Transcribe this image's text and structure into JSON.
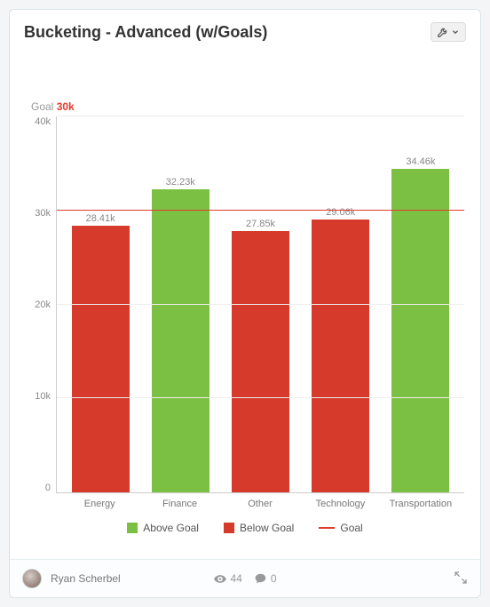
{
  "card": {
    "title": "Bucketing - Advanced (w/Goals)"
  },
  "chart": {
    "type": "bar",
    "goal_label": "Goal",
    "goal_value_label": "30k",
    "goal_value": 30,
    "goal_color": "#e23b2e",
    "ylim": [
      0,
      40
    ],
    "ytick_step": 10,
    "yticks": [
      "40k",
      "30k",
      "20k",
      "10k",
      "0"
    ],
    "background_color": "#ffffff",
    "grid_color": "#eeeeee",
    "axis_color": "#cccccc",
    "bar_width_pct": 72,
    "label_fontsize": 11,
    "label_color": "#888888",
    "categories": [
      "Energy",
      "Finance",
      "Other",
      "Technology",
      "Transportation"
    ],
    "values": [
      28.41,
      32.23,
      27.85,
      29.06,
      34.46
    ],
    "value_labels": [
      "28.41k",
      "32.23k",
      "27.85k",
      "29.06k",
      "34.46k"
    ],
    "bar_colors": [
      "#d53a2b",
      "#7bc043",
      "#d53a2b",
      "#d53a2b",
      "#7bc043"
    ],
    "legend": {
      "above": {
        "label": "Above Goal",
        "color": "#7bc043"
      },
      "below": {
        "label": "Below Goal",
        "color": "#d53a2b"
      },
      "goal": {
        "label": "Goal",
        "color": "#e23b2e"
      }
    }
  },
  "footer": {
    "author": "Ryan Scherbel",
    "views": "44",
    "comments": "0"
  }
}
